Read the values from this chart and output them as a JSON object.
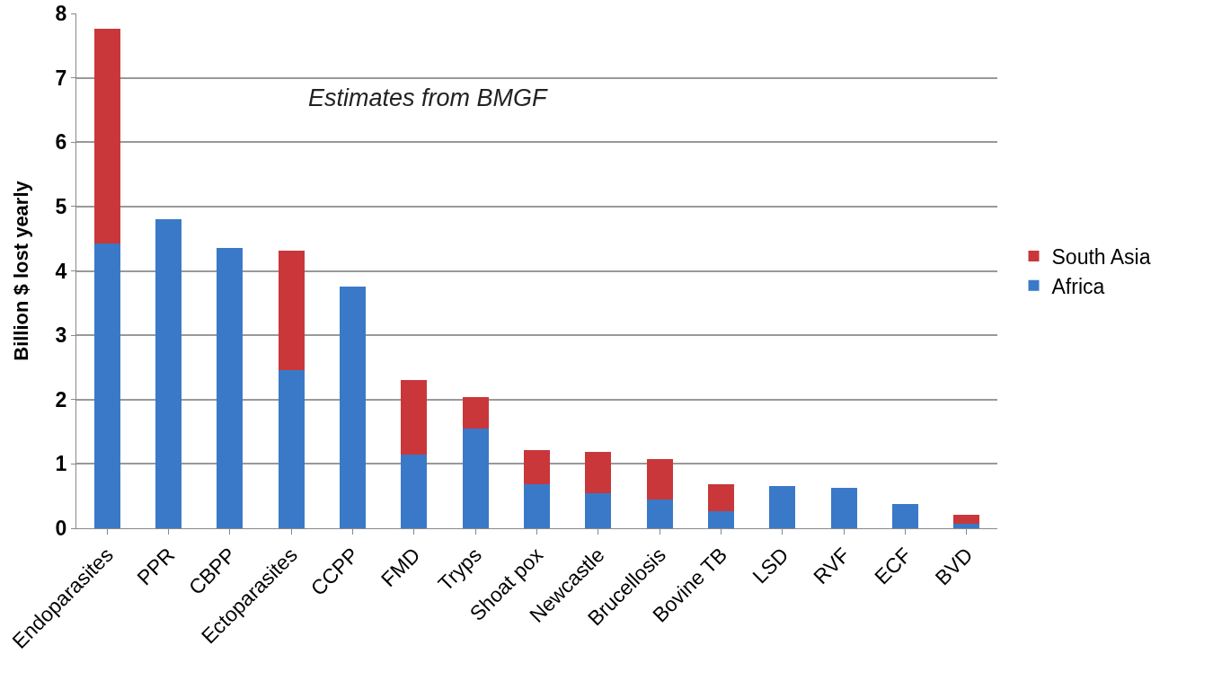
{
  "chart_data": {
    "type": "bar",
    "stacked": true,
    "ylabel": "Billion $ lost yearly",
    "annotations": [
      "Estimates from BMGF"
    ],
    "categories": [
      "Endoparasites",
      "PPR",
      "CBPP",
      "Ectoparasites",
      "CCPP",
      "FMD",
      "Tryps",
      "Shoat pox",
      "Newcastle",
      "Brucellosis",
      "Bovine TB",
      "LSD",
      "RVF",
      "ECF",
      "BVD"
    ],
    "series": [
      {
        "name": "Africa",
        "color": "#3a79c8",
        "values": [
          4.43,
          4.8,
          4.36,
          2.46,
          3.75,
          1.14,
          1.55,
          0.68,
          0.54,
          0.45,
          0.26,
          0.65,
          0.63,
          0.38,
          0.07
        ]
      },
      {
        "name": "South Asia",
        "color": "#c9373a",
        "values": [
          3.33,
          null,
          null,
          1.86,
          null,
          1.17,
          0.49,
          0.53,
          0.65,
          0.63,
          0.42,
          null,
          null,
          null,
          0.14
        ]
      }
    ],
    "ylim": [
      0,
      8
    ],
    "yticks": [
      0,
      1,
      2,
      3,
      4,
      5,
      6,
      7,
      8
    ],
    "grid": "y",
    "legend": "right"
  }
}
